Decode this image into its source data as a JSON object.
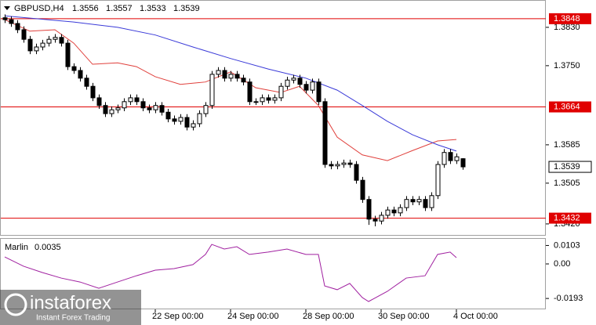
{
  "chart_data": {
    "type": "candlestick",
    "title": "GBPUSD,H4",
    "up_color": "#ffffff",
    "down_color": "#000000",
    "open": [
      1.385,
      1.3846,
      1.3838,
      1.3825,
      1.3805,
      1.3781,
      1.3789,
      1.3797,
      1.3805,
      1.3809,
      1.3797,
      1.3748,
      1.374,
      1.3724,
      1.3707,
      1.3683,
      1.3667,
      1.365,
      1.3658,
      1.3662,
      1.3675,
      1.3683,
      1.3675,
      1.3662,
      1.3658,
      1.3667,
      1.3653,
      1.3639,
      1.3634,
      1.3642,
      1.3622,
      1.3629,
      1.365,
      1.3667,
      1.3732,
      1.374,
      1.3724,
      1.3732,
      1.3724,
      1.3716,
      1.3675,
      1.3675,
      1.3683,
      1.3678,
      1.3683,
      1.3707,
      1.372,
      1.3724,
      1.3711,
      1.3699,
      1.3716,
      1.3675,
      1.3544,
      1.3541,
      1.3544,
      1.3547,
      1.3544,
      1.3511,
      1.3471,
      1.343,
      1.3426,
      1.3438,
      1.3449,
      1.3443,
      1.3454,
      1.3471,
      1.3466,
      1.3471,
      1.3454,
      1.3479,
      1.3544,
      1.3569,
      1.3552,
      1.3556
    ],
    "high": [
      1.3857,
      1.3853,
      1.3845,
      1.3832,
      1.3812,
      1.3796,
      1.3804,
      1.3812,
      1.3816,
      1.3816,
      1.3804,
      1.3755,
      1.3747,
      1.3731,
      1.3714,
      1.369,
      1.3674,
      1.3665,
      1.3669,
      1.3682,
      1.369,
      1.369,
      1.3682,
      1.3669,
      1.3674,
      1.3674,
      1.366,
      1.3646,
      1.3649,
      1.3649,
      1.3636,
      1.3657,
      1.3674,
      1.3739,
      1.3747,
      1.3747,
      1.3739,
      1.3739,
      1.3731,
      1.3723,
      1.3682,
      1.369,
      1.369,
      1.369,
      1.3714,
      1.3727,
      1.3731,
      1.3731,
      1.3718,
      1.3723,
      1.3723,
      1.3682,
      1.3551,
      1.3551,
      1.3554,
      1.3554,
      1.3551,
      1.3518,
      1.3478,
      1.3437,
      1.3445,
      1.3456,
      1.3456,
      1.3461,
      1.3478,
      1.3478,
      1.3478,
      1.3478,
      1.3486,
      1.3551,
      1.3576,
      1.3576,
      1.3567,
      1.3557
    ],
    "low": [
      1.3839,
      1.3831,
      1.3818,
      1.3798,
      1.3774,
      1.3774,
      1.3782,
      1.379,
      1.3798,
      1.379,
      1.3741,
      1.3733,
      1.3717,
      1.37,
      1.3676,
      1.366,
      1.3643,
      1.3643,
      1.3651,
      1.3655,
      1.3668,
      1.3668,
      1.3655,
      1.3651,
      1.3651,
      1.3646,
      1.3632,
      1.3627,
      1.3627,
      1.3615,
      1.3615,
      1.3622,
      1.3643,
      1.366,
      1.3725,
      1.3717,
      1.3717,
      1.3717,
      1.3709,
      1.3668,
      1.3668,
      1.3668,
      1.3671,
      1.3671,
      1.3676,
      1.37,
      1.3713,
      1.3704,
      1.3692,
      1.3692,
      1.3668,
      1.3537,
      1.3534,
      1.3534,
      1.3537,
      1.3537,
      1.3504,
      1.3464,
      1.3418,
      1.3415,
      1.3419,
      1.3431,
      1.3436,
      1.3436,
      1.3447,
      1.3459,
      1.3459,
      1.3447,
      1.3447,
      1.3472,
      1.3537,
      1.3545,
      1.3545,
      1.3533
    ],
    "close": [
      1.3846,
      1.3838,
      1.3825,
      1.3805,
      1.3781,
      1.3789,
      1.3797,
      1.3805,
      1.3809,
      1.3797,
      1.3748,
      1.374,
      1.3724,
      1.3707,
      1.3683,
      1.3667,
      1.365,
      1.3658,
      1.3662,
      1.3675,
      1.3683,
      1.3675,
      1.3662,
      1.3658,
      1.3667,
      1.3653,
      1.3639,
      1.3634,
      1.3642,
      1.3622,
      1.3629,
      1.365,
      1.3667,
      1.3732,
      1.374,
      1.3724,
      1.3732,
      1.3724,
      1.3716,
      1.3675,
      1.3675,
      1.3683,
      1.3678,
      1.3683,
      1.3707,
      1.372,
      1.3724,
      1.3711,
      1.3699,
      1.3716,
      1.3675,
      1.3544,
      1.3541,
      1.3544,
      1.3547,
      1.3544,
      1.3511,
      1.3471,
      1.343,
      1.3426,
      1.3438,
      1.3449,
      1.3443,
      1.3454,
      1.3471,
      1.3466,
      1.3471,
      1.3454,
      1.3479,
      1.3544,
      1.3569,
      1.3552,
      1.356,
      1.3539
    ],
    "ylim": [
      1.3397,
      1.3887
    ],
    "yticks": [
      {
        "value": 1.383,
        "label": "1.3830"
      },
      {
        "value": 1.375,
        "label": "1.3750"
      },
      1.3585,
      1.3505,
      {
        "value": 1.342,
        "label": "1.3420"
      }
    ],
    "xticks": [
      {
        "value": 24,
        "label": "22 Sep 00:00"
      },
      {
        "value": 36,
        "label": "24 Sep 00:00"
      },
      {
        "value": 48,
        "label": "28 Sep 00:00"
      },
      {
        "value": 60,
        "label": "30 Sep 00:00"
      },
      {
        "value": 72,
        "label": "4 Oct 00:00"
      }
    ],
    "overlays": [
      {
        "color": "#e0403c",
        "x": [
          0,
          4,
          8,
          11,
          14,
          18,
          21,
          24,
          28,
          32,
          36,
          40,
          44,
          47,
          50,
          53,
          57,
          61,
          65,
          69,
          72
        ],
        "values": [
          1.3846,
          1.3822,
          1.3825,
          1.3797,
          1.3753,
          1.3756,
          1.3748,
          1.3727,
          1.3711,
          1.3716,
          1.3737,
          1.3704,
          1.3694,
          1.3707,
          1.3667,
          1.3601,
          1.3564,
          1.3552,
          1.3573,
          1.3593,
          1.3596
        ]
      },
      {
        "color": "#3a3ad8",
        "x": [
          0,
          11,
          18,
          24,
          30,
          36,
          42,
          48,
          53,
          57,
          61,
          65,
          69,
          72
        ],
        "values": [
          1.3854,
          1.3841,
          1.383,
          1.3814,
          1.3789,
          1.3765,
          1.3743,
          1.3724,
          1.3699,
          1.3667,
          1.3634,
          1.3606,
          1.3585,
          1.3572
        ]
      }
    ],
    "hlines": [
      {
        "value": 1.3848,
        "color": "#e00000"
      },
      {
        "value": 1.3664,
        "color": "#e00000"
      },
      {
        "value": 1.3432,
        "color": "#e00000"
      }
    ],
    "indicator": {
      "name": "Marlin",
      "color": "#a020a0",
      "x": [
        0,
        3,
        6,
        9,
        12,
        15,
        18,
        21,
        24,
        27,
        30,
        32,
        33,
        35,
        37,
        39,
        42,
        45,
        48,
        50,
        51,
        53,
        55,
        57,
        58,
        61,
        64,
        67,
        69,
        71,
        72
      ],
      "values": [
        0.0039,
        -0.0013,
        -0.0048,
        -0.0079,
        -0.0101,
        -0.0136,
        -0.0101,
        -0.0066,
        -0.0035,
        -0.0026,
        -0.0004,
        0.0053,
        0.0109,
        0.0083,
        0.0096,
        0.0053,
        0.0066,
        0.0083,
        0.0053,
        0.0053,
        -0.0123,
        -0.0144,
        -0.0109,
        -0.0188,
        -0.021,
        -0.0153,
        -0.0079,
        -0.0066,
        0.0053,
        0.0066,
        0.0035
      ],
      "ylim": [
        -0.0245,
        0.014
      ],
      "yticks": [
        0.0103,
        {
          "value": 0,
          "label": "0.00"
        },
        -0.0193
      ]
    },
    "watermark": {
      "brand": "instaforex",
      "tagline": "Instant Forex Trading"
    }
  }
}
